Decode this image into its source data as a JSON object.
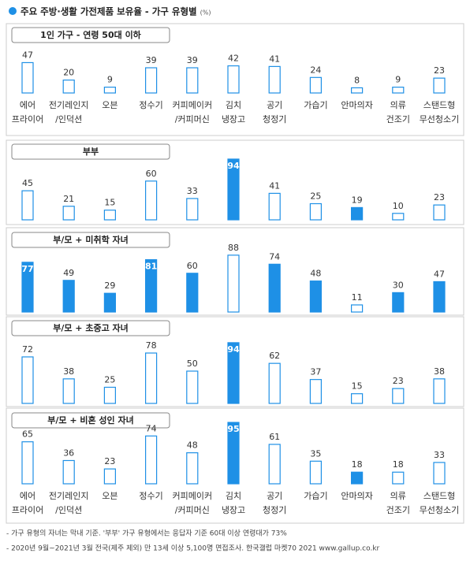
{
  "title": "주요 주방·생활 가전제품 보유율 - 가구 유형별",
  "unit": "(%)",
  "categories": [
    [
      "에어",
      "프라이어"
    ],
    [
      "전기레인지",
      "/인덕션"
    ],
    [
      "오븐"
    ],
    [
      "정수기"
    ],
    [
      "커피메이커",
      "/커피머신"
    ],
    [
      "김치",
      "냉장고"
    ],
    [
      "공기",
      "청정기"
    ],
    [
      "가습기"
    ],
    [
      "안마의자"
    ],
    [
      "의류",
      "건조기"
    ],
    [
      "스탠드형",
      "무선청소기"
    ]
  ],
  "chart_data": [
    {
      "type": "bar",
      "title": "1인 가구 - 연령 50대 이하",
      "color": "#1e90e6",
      "values": [
        47,
        20,
        9,
        39,
        39,
        42,
        41,
        24,
        8,
        9,
        23
      ],
      "filled": [
        false,
        false,
        false,
        false,
        false,
        false,
        false,
        false,
        false,
        false,
        false
      ]
    },
    {
      "type": "bar",
      "title": "부부",
      "color": "#1e90e6",
      "values": [
        45,
        21,
        15,
        60,
        33,
        94,
        41,
        25,
        19,
        10,
        23
      ],
      "filled": [
        false,
        false,
        false,
        false,
        false,
        true,
        false,
        false,
        true,
        false,
        false
      ]
    },
    {
      "type": "bar",
      "title": "부/모 + 미취학 자녀",
      "color": "#1e90e6",
      "values": [
        77,
        49,
        29,
        81,
        60,
        88,
        74,
        48,
        11,
        30,
        47
      ],
      "filled": [
        true,
        true,
        true,
        true,
        true,
        false,
        true,
        true,
        false,
        true,
        true
      ]
    },
    {
      "type": "bar",
      "title": "부/모 + 초중고 자녀",
      "color": "#1e90e6",
      "values": [
        72,
        38,
        25,
        78,
        50,
        94,
        62,
        37,
        15,
        23,
        38
      ],
      "filled": [
        false,
        false,
        false,
        false,
        false,
        true,
        false,
        false,
        false,
        false,
        false
      ]
    },
    {
      "type": "bar",
      "title": "부/모 + 비혼 성인 자녀",
      "color": "#1e90e6",
      "values": [
        65,
        36,
        23,
        74,
        48,
        95,
        61,
        35,
        18,
        18,
        33
      ],
      "filled": [
        false,
        false,
        false,
        false,
        false,
        true,
        false,
        false,
        true,
        false,
        false
      ]
    }
  ],
  "notes": [
    "- 가구 유형의 자녀는 막내 기준. '부부' 가구 유형에서는 응답자 기준 60대 이상 연령대가 73%",
    "- 2020년 9월~2021년 3월 전국(제주 제외) 만 13세 이상 5,100명 면접조사. 한국갤럽 마켓70 2021 www.gallup.co.kr"
  ]
}
